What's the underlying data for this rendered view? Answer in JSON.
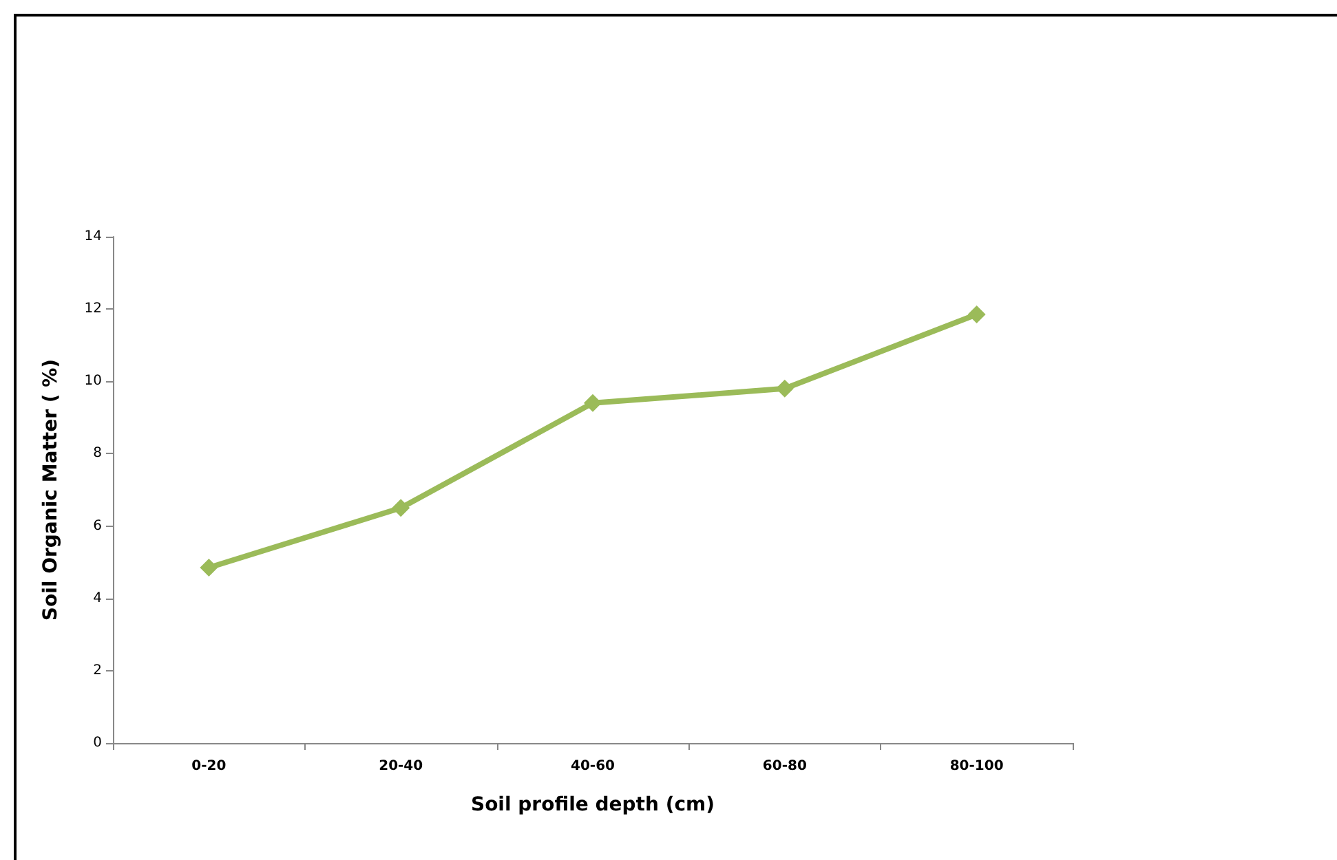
{
  "chart_data": {
    "type": "line",
    "xlabel": "Soil profile depth (cm)",
    "ylabel": "Soil Organic Matter ( %)",
    "categories": [
      "0-20",
      "20-40",
      "40-60",
      "60-80",
      "80-100"
    ],
    "series": [
      {
        "color": "#9bbb59",
        "values": [
          4.85,
          6.5,
          9.4,
          9.8,
          11.85
        ]
      }
    ],
    "ylim": [
      0,
      14
    ],
    "yticks": [
      0,
      2,
      4,
      6,
      8,
      10,
      12,
      14
    ],
    "marker": "diamond",
    "line_style": "solid"
  }
}
